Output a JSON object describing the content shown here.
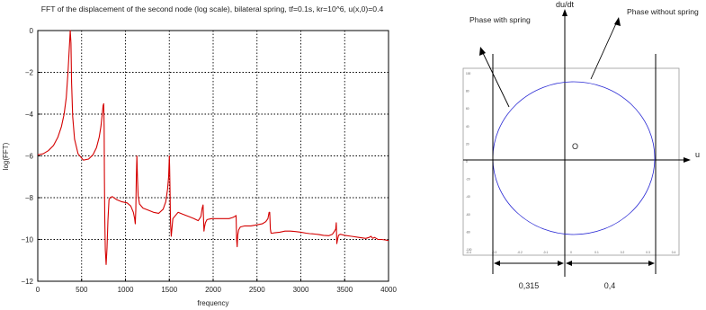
{
  "chart_data": [
    {
      "type": "line",
      "title": "FFT of the  displacement of the second  node (log scale), bilateral spring, tf=0.1s, kr=10^6, u(x,0)=0.4",
      "xlabel": "frequency",
      "ylabel": "log(FFT)",
      "xlim": [
        0,
        4000
      ],
      "ylim": [
        -12,
        0
      ],
      "xticks": [
        "0",
        "500",
        "1000",
        "1500",
        "2000",
        "2500",
        "3000",
        "3500",
        "4000"
      ],
      "yticks": [
        "0",
        "−2",
        "−4",
        "−6",
        "−8",
        "−10",
        "−12"
      ],
      "grid": true,
      "line_color": "#d40000",
      "series": [
        {
          "x": [
            0,
            60,
            120,
            180,
            230,
            270,
            300,
            325,
            345,
            360,
            370,
            378,
            386,
            398,
            420,
            460,
            520,
            580,
            630,
            670,
            700,
            720,
            735,
            745,
            752,
            757,
            760,
            764,
            770,
            780,
            790,
            800,
            806,
            812,
            825,
            850,
            900,
            960,
            1020,
            1060,
            1090,
            1105,
            1112,
            1118,
            1124,
            1130,
            1136,
            1145,
            1160,
            1200,
            1260,
            1320,
            1380,
            1430,
            1460,
            1480,
            1492,
            1500,
            1504,
            1508,
            1514,
            1522,
            1540,
            1600,
            1660,
            1720,
            1780,
            1830,
            1860,
            1875,
            1885,
            1890,
            1895,
            1902,
            1912,
            1930,
            1980,
            2050,
            2120,
            2180,
            2220,
            2248,
            2262,
            2268,
            2274,
            2280,
            2290,
            2310,
            2360,
            2430,
            2500,
            2560,
            2600,
            2625,
            2638,
            2645,
            2652,
            2660,
            2675,
            2700,
            2760,
            2820,
            2880,
            2940,
            3000,
            3060,
            3100,
            3130,
            3160,
            3200,
            3260,
            3320,
            3360,
            3385,
            3398,
            3404,
            3410,
            3418,
            3430,
            3450,
            3500,
            3580,
            3660,
            3740,
            3780,
            3800,
            3820,
            3840,
            3880,
            3920,
            3960,
            4000
          ],
          "y": [
            -5.95,
            -5.9,
            -5.75,
            -5.5,
            -5.1,
            -4.6,
            -4.0,
            -3.2,
            -2.0,
            -0.8,
            0.0,
            -0.6,
            -2.5,
            -4.1,
            -5.2,
            -5.9,
            -6.2,
            -6.15,
            -5.95,
            -5.6,
            -5.1,
            -4.6,
            -4.0,
            -3.6,
            -3.5,
            -4.6,
            -7.0,
            -9.0,
            -10.5,
            -11.2,
            -10.4,
            -9.1,
            -8.6,
            -8.1,
            -8.0,
            -7.95,
            -8.1,
            -8.2,
            -8.25,
            -8.4,
            -8.7,
            -9.0,
            -9.25,
            -8.6,
            -7.0,
            -6.0,
            -7.0,
            -7.9,
            -8.3,
            -8.5,
            -8.6,
            -8.7,
            -8.75,
            -8.55,
            -8.2,
            -7.6,
            -7.0,
            -6.0,
            -6.5,
            -7.5,
            -9.2,
            -9.85,
            -9.0,
            -8.7,
            -8.8,
            -8.9,
            -9.0,
            -9.1,
            -8.9,
            -8.5,
            -8.35,
            -9.0,
            -9.6,
            -9.4,
            -9.2,
            -9.05,
            -9.0,
            -9.0,
            -9.0,
            -9.0,
            -8.95,
            -8.9,
            -8.85,
            -10.0,
            -10.35,
            -9.8,
            -9.55,
            -9.4,
            -9.35,
            -9.35,
            -9.3,
            -9.25,
            -9.15,
            -9.0,
            -8.7,
            -8.7,
            -9.5,
            -9.7,
            -9.7,
            -9.68,
            -9.65,
            -9.6,
            -9.6,
            -9.62,
            -9.65,
            -9.7,
            -9.72,
            -9.73,
            -9.74,
            -9.76,
            -9.8,
            -9.82,
            -9.75,
            -9.6,
            -9.5,
            -9.2,
            -10.2,
            -10.0,
            -9.8,
            -9.75,
            -9.8,
            -9.85,
            -9.9,
            -9.95,
            -9.9,
            -9.85,
            -9.95,
            -9.9,
            -10.0,
            -10.0,
            -10.02,
            -10.05
          ]
        }
      ]
    },
    {
      "type": "scatter",
      "title": "",
      "xlabel": "u",
      "ylabel": "du/dt",
      "xlim": [
        -0.4,
        0.4
      ],
      "ylim": [
        -100,
        100
      ],
      "xticks": [
        "-0.4",
        "-0.3",
        "-0.2",
        "-0.1",
        "0",
        "0.1",
        "0.2",
        "0.3",
        "0.4"
      ],
      "yticks": [
        "100",
        "80",
        "60",
        "40",
        "20",
        "0",
        "-20",
        "-40",
        "-60",
        "-80",
        "-100"
      ],
      "curve": "phase-portrait ellipse, u in [-0.315, 0.4], du/dt in [-90, 90]",
      "curve_color": "#2a2ad4",
      "annotations": {
        "origin": "O",
        "left_arrow": "Phase with spring",
        "right_arrow": "Phase without spring",
        "dim_left": "0,315",
        "dim_right": "0,4"
      }
    }
  ]
}
